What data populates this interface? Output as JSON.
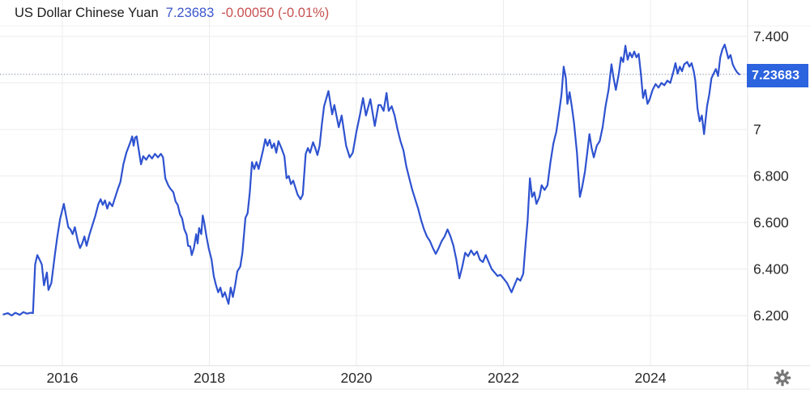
{
  "header": {
    "title": "US Dollar Chinese Yuan",
    "price": "7.23683",
    "change": "-0.00050 (-0.01%)"
  },
  "price_line": {
    "value": 7.23683,
    "label": "7.23683"
  },
  "controls": {
    "settings_icon": "gear"
  },
  "colors": {
    "line": "#2e52d0",
    "price_box": "#2c63de",
    "header_price": "#3c55cc",
    "header_change": "#c85050",
    "grid": "#ececec",
    "frame": "#e0e0e0",
    "axis_text": "#2a2a2a",
    "dotted_line": "#7c88a0",
    "gear": "#767676"
  },
  "chart_data": {
    "type": "line",
    "title": "US Dollar Chinese Yuan",
    "xlabel": "",
    "ylabel": "",
    "grid": true,
    "legend": false,
    "x_axis": {
      "unit": "year",
      "ticks": [
        2016,
        2018,
        2020,
        2022,
        2024
      ],
      "tick_labels": [
        "2016",
        "2018",
        "2020",
        "2022",
        "2024"
      ],
      "range": [
        2015.2,
        2025.3
      ]
    },
    "y_axis": {
      "tick_values": [
        7.4,
        7.0,
        6.8,
        6.6,
        6.4,
        6.2
      ],
      "tick_labels": [
        "7.400",
        "7",
        "6.800",
        "6.600",
        "6.400",
        "6.200"
      ],
      "grid_values": [
        7.4,
        7.2,
        7.0,
        6.8,
        6.6,
        6.4,
        6.2
      ],
      "range": [
        6.08,
        7.46
      ]
    },
    "series": [
      {
        "name": "USD/CNY",
        "color": "#2e52d0",
        "points": [
          [
            2015.2,
            6.205
          ],
          [
            2015.26,
            6.21
          ],
          [
            2015.31,
            6.2
          ],
          [
            2015.36,
            6.212
          ],
          [
            2015.42,
            6.203
          ],
          [
            2015.47,
            6.215
          ],
          [
            2015.52,
            6.208
          ],
          [
            2015.57,
            6.212
          ],
          [
            2015.6,
            6.21
          ],
          [
            2015.63,
            6.42
          ],
          [
            2015.66,
            6.46
          ],
          [
            2015.69,
            6.44
          ],
          [
            2015.72,
            6.42
          ],
          [
            2015.75,
            6.33
          ],
          [
            2015.79,
            6.385
          ],
          [
            2015.81,
            6.31
          ],
          [
            2015.85,
            6.34
          ],
          [
            2015.9,
            6.465
          ],
          [
            2015.93,
            6.535
          ],
          [
            2015.97,
            6.617
          ],
          [
            2016.02,
            6.68
          ],
          [
            2016.05,
            6.63
          ],
          [
            2016.08,
            6.58
          ],
          [
            2016.11,
            6.57
          ],
          [
            2016.14,
            6.55
          ],
          [
            2016.17,
            6.58
          ],
          [
            2016.21,
            6.52
          ],
          [
            2016.24,
            6.49
          ],
          [
            2016.27,
            6.51
          ],
          [
            2016.3,
            6.54
          ],
          [
            2016.33,
            6.5
          ],
          [
            2016.37,
            6.55
          ],
          [
            2016.41,
            6.59
          ],
          [
            2016.45,
            6.63
          ],
          [
            2016.49,
            6.68
          ],
          [
            2016.52,
            6.7
          ],
          [
            2016.55,
            6.676
          ],
          [
            2016.58,
            6.695
          ],
          [
            2016.61,
            6.66
          ],
          [
            2016.64,
            6.687
          ],
          [
            2016.68,
            6.67
          ],
          [
            2016.71,
            6.7
          ],
          [
            2016.75,
            6.74
          ],
          [
            2016.79,
            6.775
          ],
          [
            2016.83,
            6.85
          ],
          [
            2016.87,
            6.9
          ],
          [
            2016.9,
            6.925
          ],
          [
            2016.93,
            6.95
          ],
          [
            2016.95,
            6.97
          ],
          [
            2016.97,
            6.93
          ],
          [
            2016.99,
            6.965
          ],
          [
            2017.01,
            6.97
          ],
          [
            2017.04,
            6.91
          ],
          [
            2017.07,
            6.85
          ],
          [
            2017.1,
            6.885
          ],
          [
            2017.14,
            6.87
          ],
          [
            2017.18,
            6.89
          ],
          [
            2017.22,
            6.875
          ],
          [
            2017.26,
            6.895
          ],
          [
            2017.3,
            6.88
          ],
          [
            2017.34,
            6.895
          ],
          [
            2017.37,
            6.88
          ],
          [
            2017.4,
            6.79
          ],
          [
            2017.44,
            6.76
          ],
          [
            2017.47,
            6.745
          ],
          [
            2017.51,
            6.73
          ],
          [
            2017.54,
            6.69
          ],
          [
            2017.57,
            6.675
          ],
          [
            2017.6,
            6.635
          ],
          [
            2017.63,
            6.617
          ],
          [
            2017.66,
            6.57
          ],
          [
            2017.69,
            6.548
          ],
          [
            2017.71,
            6.5
          ],
          [
            2017.74,
            6.497
          ],
          [
            2017.76,
            6.46
          ],
          [
            2017.79,
            6.49
          ],
          [
            2017.82,
            6.55
          ],
          [
            2017.84,
            6.51
          ],
          [
            2017.86,
            6.576
          ],
          [
            2017.89,
            6.55
          ],
          [
            2017.91,
            6.63
          ],
          [
            2017.93,
            6.6
          ],
          [
            2017.96,
            6.54
          ],
          [
            2017.99,
            6.49
          ],
          [
            2018.03,
            6.44
          ],
          [
            2018.06,
            6.37
          ],
          [
            2018.09,
            6.33
          ],
          [
            2018.12,
            6.3
          ],
          [
            2018.15,
            6.32
          ],
          [
            2018.18,
            6.28
          ],
          [
            2018.21,
            6.3
          ],
          [
            2018.24,
            6.27
          ],
          [
            2018.26,
            6.25
          ],
          [
            2018.29,
            6.32
          ],
          [
            2018.32,
            6.28
          ],
          [
            2018.35,
            6.33
          ],
          [
            2018.38,
            6.39
          ],
          [
            2018.42,
            6.41
          ],
          [
            2018.45,
            6.47
          ],
          [
            2018.49,
            6.62
          ],
          [
            2018.52,
            6.64
          ],
          [
            2018.55,
            6.73
          ],
          [
            2018.58,
            6.86
          ],
          [
            2018.61,
            6.83
          ],
          [
            2018.64,
            6.86
          ],
          [
            2018.67,
            6.83
          ],
          [
            2018.7,
            6.87
          ],
          [
            2018.73,
            6.91
          ],
          [
            2018.76,
            6.958
          ],
          [
            2018.79,
            6.93
          ],
          [
            2018.82,
            6.955
          ],
          [
            2018.85,
            6.92
          ],
          [
            2018.88,
            6.94
          ],
          [
            2018.91,
            6.9
          ],
          [
            2018.94,
            6.95
          ],
          [
            2018.98,
            6.92
          ],
          [
            2019.02,
            6.885
          ],
          [
            2019.05,
            6.79
          ],
          [
            2019.08,
            6.8
          ],
          [
            2019.11,
            6.765
          ],
          [
            2019.14,
            6.78
          ],
          [
            2019.17,
            6.75
          ],
          [
            2019.2,
            6.72
          ],
          [
            2019.24,
            6.7
          ],
          [
            2019.27,
            6.72
          ],
          [
            2019.31,
            6.895
          ],
          [
            2019.34,
            6.92
          ],
          [
            2019.37,
            6.9
          ],
          [
            2019.41,
            6.945
          ],
          [
            2019.44,
            6.92
          ],
          [
            2019.47,
            6.89
          ],
          [
            2019.5,
            6.93
          ],
          [
            2019.53,
            7.02
          ],
          [
            2019.56,
            7.1
          ],
          [
            2019.62,
            7.165
          ],
          [
            2019.67,
            7.065
          ],
          [
            2019.7,
            7.105
          ],
          [
            2019.76,
            7.01
          ],
          [
            2019.8,
            7.06
          ],
          [
            2019.86,
            6.93
          ],
          [
            2019.91,
            6.88
          ],
          [
            2019.95,
            6.9
          ],
          [
            2020.0,
            6.99
          ],
          [
            2020.05,
            7.065
          ],
          [
            2020.09,
            7.135
          ],
          [
            2020.13,
            7.06
          ],
          [
            2020.19,
            7.13
          ],
          [
            2020.25,
            7.015
          ],
          [
            2020.3,
            7.105
          ],
          [
            2020.33,
            7.105
          ],
          [
            2020.37,
            7.08
          ],
          [
            2020.41,
            7.157
          ],
          [
            2020.44,
            7.08
          ],
          [
            2020.48,
            7.1
          ],
          [
            2020.52,
            7.06
          ],
          [
            2020.56,
            7.0
          ],
          [
            2020.6,
            6.95
          ],
          [
            2020.64,
            6.91
          ],
          [
            2020.68,
            6.84
          ],
          [
            2020.72,
            6.79
          ],
          [
            2020.76,
            6.74
          ],
          [
            2020.8,
            6.7
          ],
          [
            2020.84,
            6.66
          ],
          [
            2020.88,
            6.61
          ],
          [
            2020.92,
            6.57
          ],
          [
            2020.96,
            6.54
          ],
          [
            2021.0,
            6.52
          ],
          [
            2021.04,
            6.49
          ],
          [
            2021.08,
            6.465
          ],
          [
            2021.12,
            6.49
          ],
          [
            2021.16,
            6.52
          ],
          [
            2021.2,
            6.54
          ],
          [
            2021.24,
            6.57
          ],
          [
            2021.28,
            6.54
          ],
          [
            2021.32,
            6.5
          ],
          [
            2021.36,
            6.44
          ],
          [
            2021.4,
            6.36
          ],
          [
            2021.44,
            6.41
          ],
          [
            2021.48,
            6.47
          ],
          [
            2021.52,
            6.455
          ],
          [
            2021.56,
            6.48
          ],
          [
            2021.6,
            6.46
          ],
          [
            2021.64,
            6.475
          ],
          [
            2021.68,
            6.44
          ],
          [
            2021.72,
            6.43
          ],
          [
            2021.76,
            6.46
          ],
          [
            2021.8,
            6.43
          ],
          [
            2021.84,
            6.4
          ],
          [
            2021.88,
            6.385
          ],
          [
            2021.92,
            6.37
          ],
          [
            2021.96,
            6.375
          ],
          [
            2022.0,
            6.36
          ],
          [
            2022.05,
            6.34
          ],
          [
            2022.11,
            6.3
          ],
          [
            2022.15,
            6.33
          ],
          [
            2022.19,
            6.36
          ],
          [
            2022.23,
            6.35
          ],
          [
            2022.27,
            6.38
          ],
          [
            2022.3,
            6.5
          ],
          [
            2022.33,
            6.61
          ],
          [
            2022.36,
            6.79
          ],
          [
            2022.39,
            6.71
          ],
          [
            2022.42,
            6.73
          ],
          [
            2022.45,
            6.68
          ],
          [
            2022.49,
            6.71
          ],
          [
            2022.52,
            6.76
          ],
          [
            2022.56,
            6.74
          ],
          [
            2022.6,
            6.76
          ],
          [
            2022.64,
            6.86
          ],
          [
            2022.68,
            6.94
          ],
          [
            2022.72,
            6.99
          ],
          [
            2022.76,
            7.08
          ],
          [
            2022.79,
            7.15
          ],
          [
            2022.82,
            7.27
          ],
          [
            2022.85,
            7.22
          ],
          [
            2022.87,
            7.11
          ],
          [
            2022.9,
            7.16
          ],
          [
            2022.93,
            7.1
          ],
          [
            2022.96,
            7.03
          ],
          [
            2023.0,
            6.9
          ],
          [
            2023.04,
            6.71
          ],
          [
            2023.07,
            6.75
          ],
          [
            2023.11,
            6.82
          ],
          [
            2023.14,
            6.9
          ],
          [
            2023.17,
            6.98
          ],
          [
            2023.2,
            6.92
          ],
          [
            2023.23,
            6.88
          ],
          [
            2023.27,
            6.93
          ],
          [
            2023.31,
            6.95
          ],
          [
            2023.35,
            7.01
          ],
          [
            2023.39,
            7.1
          ],
          [
            2023.43,
            7.17
          ],
          [
            2023.47,
            7.28
          ],
          [
            2023.5,
            7.22
          ],
          [
            2023.53,
            7.17
          ],
          [
            2023.57,
            7.24
          ],
          [
            2023.6,
            7.31
          ],
          [
            2023.63,
            7.29
          ],
          [
            2023.66,
            7.36
          ],
          [
            2023.69,
            7.3
          ],
          [
            2023.72,
            7.33
          ],
          [
            2023.75,
            7.31
          ],
          [
            2023.78,
            7.335
          ],
          [
            2023.81,
            7.31
          ],
          [
            2023.84,
            7.325
          ],
          [
            2023.87,
            7.24
          ],
          [
            2023.9,
            7.135
          ],
          [
            2023.93,
            7.17
          ],
          [
            2023.96,
            7.11
          ],
          [
            2023.99,
            7.13
          ],
          [
            2024.03,
            7.17
          ],
          [
            2024.07,
            7.195
          ],
          [
            2024.11,
            7.18
          ],
          [
            2024.15,
            7.2
          ],
          [
            2024.19,
            7.19
          ],
          [
            2024.23,
            7.21
          ],
          [
            2024.27,
            7.2
          ],
          [
            2024.31,
            7.245
          ],
          [
            2024.34,
            7.285
          ],
          [
            2024.37,
            7.24
          ],
          [
            2024.4,
            7.27
          ],
          [
            2024.43,
            7.25
          ],
          [
            2024.46,
            7.28
          ],
          [
            2024.5,
            7.29
          ],
          [
            2024.53,
            7.27
          ],
          [
            2024.56,
            7.285
          ],
          [
            2024.59,
            7.25
          ],
          [
            2024.61,
            7.21
          ],
          [
            2024.64,
            7.09
          ],
          [
            2024.67,
            7.035
          ],
          [
            2024.7,
            7.06
          ],
          [
            2024.73,
            6.98
          ],
          [
            2024.77,
            7.1
          ],
          [
            2024.8,
            7.15
          ],
          [
            2024.83,
            7.22
          ],
          [
            2024.86,
            7.24
          ],
          [
            2024.89,
            7.26
          ],
          [
            2024.92,
            7.23
          ],
          [
            2024.95,
            7.31
          ],
          [
            2024.98,
            7.345
          ],
          [
            2025.01,
            7.365
          ],
          [
            2025.04,
            7.33
          ],
          [
            2025.06,
            7.305
          ],
          [
            2025.09,
            7.32
          ],
          [
            2025.12,
            7.28
          ],
          [
            2025.15,
            7.26
          ],
          [
            2025.18,
            7.245
          ],
          [
            2025.21,
            7.237
          ]
        ]
      }
    ]
  }
}
